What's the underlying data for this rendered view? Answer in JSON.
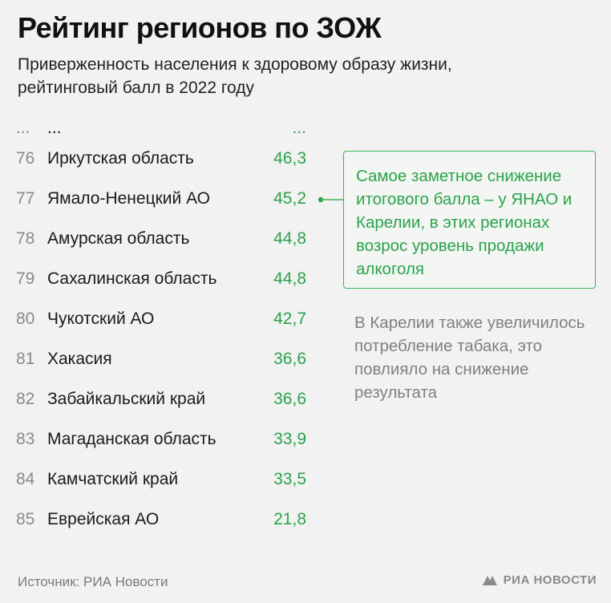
{
  "title": "Рейтинг регионов по ЗОЖ",
  "subtitle": "Приверженность населения к здоровому образу жизни, рейтинговый балл в 2022 году",
  "ellipsis": {
    "rank": "...",
    "name": "...",
    "score": "..."
  },
  "rows": [
    {
      "rank": "76",
      "name": "Иркутская область",
      "score": "46,3"
    },
    {
      "rank": "77",
      "name": "Ямало-Ненецкий АО",
      "score": "45,2"
    },
    {
      "rank": "78",
      "name": "Амурская область",
      "score": "44,8"
    },
    {
      "rank": "79",
      "name": "Сахалинская область",
      "score": "44,8"
    },
    {
      "rank": "80",
      "name": "Чукотский АО",
      "score": "42,7"
    },
    {
      "rank": "81",
      "name": "Хакасия",
      "score": "36,6"
    },
    {
      "rank": "82",
      "name": "Забайкальский край",
      "score": "36,6"
    },
    {
      "rank": "83",
      "name": "Магаданская область",
      "score": "33,9"
    },
    {
      "rank": "84",
      "name": "Камчатский край",
      "score": "33,5"
    },
    {
      "rank": "85",
      "name": "Еврейская АО",
      "score": "21,8"
    }
  ],
  "callout": "Самое заметное снижение итогового балла – у ЯНАО и Карелии, в этих регионах возрос уровень продажи алкоголя",
  "note": "В Карелии также увеличилось потребление табака, это повлияло на снижение результата",
  "source": "Источник: РИА Новости",
  "logo": "РИА НОВОСТИ",
  "colors": {
    "accent": "#2aa34a",
    "rank": "#8a8a8a",
    "background": "#f2f2f2"
  }
}
